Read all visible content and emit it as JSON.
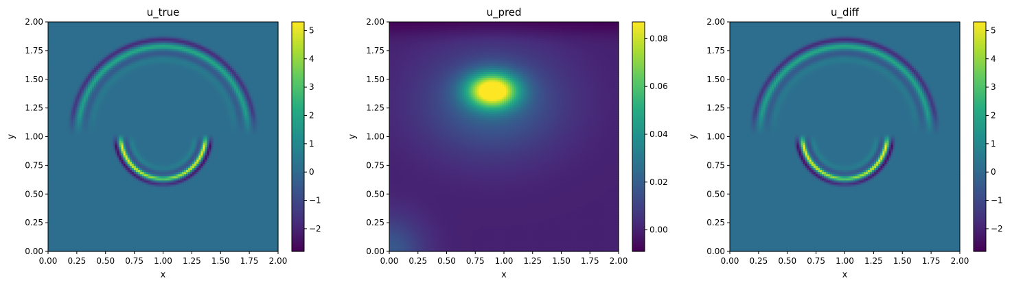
{
  "chart_data": [
    {
      "type": "heatmap",
      "title": "u_true",
      "xlabel": "x",
      "ylabel": "y",
      "xlim": [
        0,
        2
      ],
      "ylim": [
        0,
        2
      ],
      "xticks": [
        "0.00",
        "0.25",
        "0.50",
        "0.75",
        "1.00",
        "1.25",
        "1.50",
        "1.75",
        "2.00"
      ],
      "yticks": [
        "0.00",
        "0.25",
        "0.50",
        "0.75",
        "1.00",
        "1.25",
        "1.50",
        "1.75",
        "2.00"
      ],
      "colormap": "viridis",
      "colorbar": {
        "vmin": -2.8,
        "vmax": 5.3,
        "ticks": [
          "−2",
          "−1",
          "0",
          "1",
          "2",
          "3",
          "4",
          "5"
        ],
        "tick_values": [
          -2,
          -1,
          0,
          1,
          2,
          3,
          4,
          5
        ]
      },
      "background_value": 0.15,
      "features": [
        {
          "kind": "upper-arc",
          "center": [
            1.0,
            1.05
          ],
          "radius": 0.75,
          "peak": 2.0,
          "trough": -2.0,
          "ring_width": 0.05,
          "inner_ripple": 0.4
        },
        {
          "kind": "lower-arc",
          "center": [
            1.0,
            1.0
          ],
          "radius": 0.38,
          "peak": 5.2,
          "trough": -2.7,
          "ring_width": 0.04,
          "inner_ripple": 0.6
        }
      ]
    },
    {
      "type": "heatmap",
      "title": "u_pred",
      "xlabel": "x",
      "ylabel": "y",
      "xlim": [
        0,
        2
      ],
      "ylim": [
        0,
        2
      ],
      "xticks": [
        "0.00",
        "0.25",
        "0.50",
        "0.75",
        "1.00",
        "1.25",
        "1.50",
        "1.75",
        "2.00"
      ],
      "yticks": [
        "0.00",
        "0.25",
        "0.50",
        "0.75",
        "1.00",
        "1.25",
        "1.50",
        "1.75",
        "2.00"
      ],
      "colormap": "viridis",
      "colorbar": {
        "vmin": -0.009,
        "vmax": 0.087,
        "ticks": [
          "0.00",
          "0.02",
          "0.04",
          "0.06",
          "0.08"
        ],
        "tick_values": [
          0.0,
          0.02,
          0.04,
          0.06,
          0.08
        ]
      },
      "background_value": 0.0,
      "features": [
        {
          "kind": "blob",
          "center": [
            0.9,
            1.4
          ],
          "peak": 0.087,
          "spread": [
            0.22,
            0.15
          ]
        },
        {
          "kind": "halo",
          "center": [
            0.9,
            1.3
          ],
          "peak": 0.022,
          "spread": [
            0.6,
            0.45
          ]
        },
        {
          "kind": "corner",
          "center": [
            0.0,
            0.0
          ],
          "peak": 0.018,
          "spread": [
            0.3,
            0.3
          ]
        },
        {
          "kind": "top-band",
          "y": 2.0,
          "peak": -0.008,
          "spread": 0.12
        }
      ]
    },
    {
      "type": "heatmap",
      "title": "u_diff",
      "xlabel": "x",
      "ylabel": "y",
      "xlim": [
        0,
        2
      ],
      "ylim": [
        0,
        2
      ],
      "xticks": [
        "0.00",
        "0.25",
        "0.50",
        "0.75",
        "1.00",
        "1.25",
        "1.50",
        "1.75",
        "2.00"
      ],
      "yticks": [
        "0.00",
        "0.25",
        "0.50",
        "0.75",
        "1.00",
        "1.25",
        "1.50",
        "1.75",
        "2.00"
      ],
      "colormap": "viridis",
      "colorbar": {
        "vmin": -2.8,
        "vmax": 5.3,
        "ticks": [
          "−2",
          "−1",
          "0",
          "1",
          "2",
          "3",
          "4",
          "5"
        ],
        "tick_values": [
          -2,
          -1,
          0,
          1,
          2,
          3,
          4,
          5
        ]
      },
      "background_value": 0.15,
      "features": [
        {
          "kind": "upper-arc",
          "center": [
            1.0,
            1.05
          ],
          "radius": 0.75,
          "peak": 2.0,
          "trough": -2.0,
          "ring_width": 0.05,
          "inner_ripple": 0.4
        },
        {
          "kind": "lower-arc",
          "center": [
            1.0,
            1.0
          ],
          "radius": 0.38,
          "peak": 5.2,
          "trough": -2.7,
          "ring_width": 0.04,
          "inner_ripple": 0.6
        }
      ]
    }
  ]
}
